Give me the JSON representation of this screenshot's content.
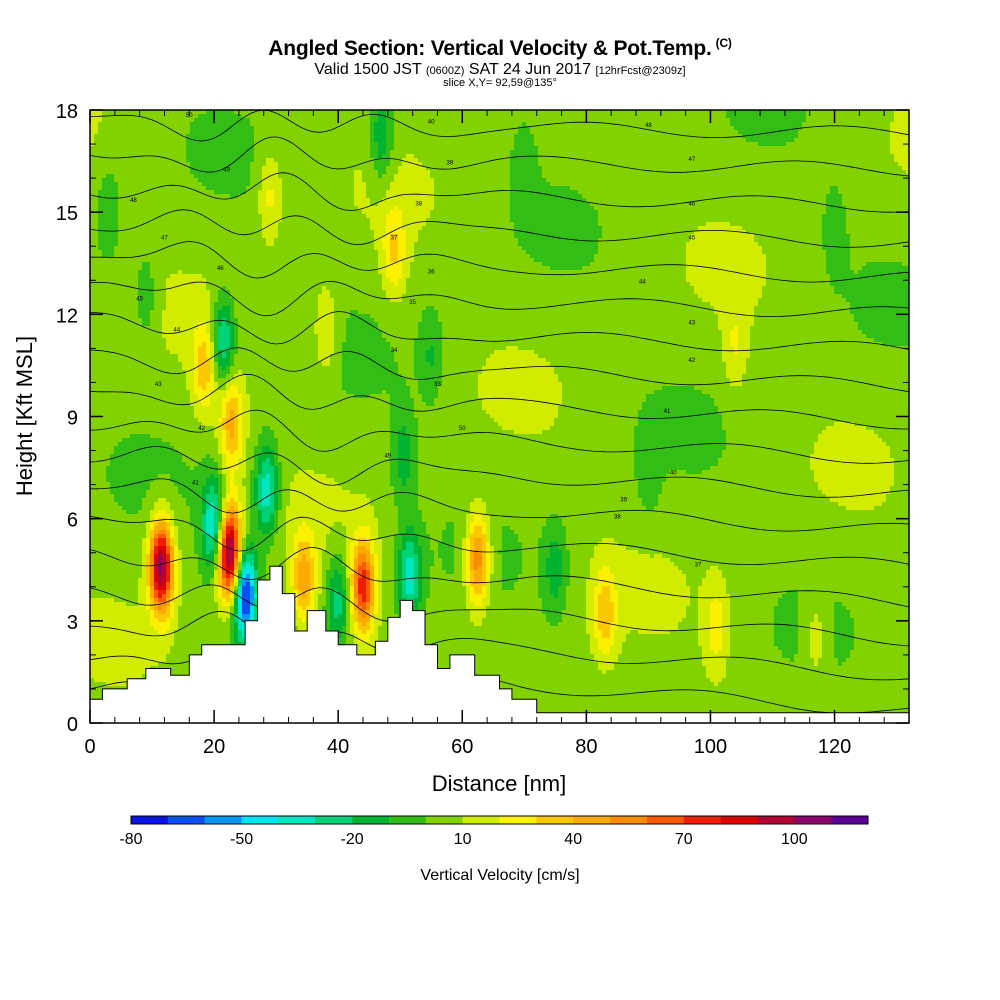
{
  "title": {
    "main": "Angled Section: Vertical Velocity & Pot.Temp.",
    "copyright": "(C)",
    "valid_prefix": "Valid 1500 JST",
    "zulu": "(0600Z)",
    "valid_date": "SAT 24 Jun 2017",
    "forecast": "[12hrFcst@2309z]",
    "slice": "slice X,Y= 92,59@135°"
  },
  "chart_data": {
    "type": "heatmap",
    "xlabel": "Distance [nm]",
    "ylabel": "Height [Kft MSL]",
    "xlim": [
      0,
      132
    ],
    "ylim": [
      0,
      18
    ],
    "x_ticks": [
      "0",
      "20",
      "40",
      "60",
      "80",
      "100",
      "120"
    ],
    "y_ticks": [
      "0",
      "3",
      "6",
      "9",
      "12",
      "15",
      "18"
    ],
    "colorbar": {
      "label": "Vertical Velocity [cm/s]",
      "tick_labels": [
        "-80",
        "-50",
        "-20",
        "10",
        "40",
        "70",
        "100"
      ],
      "levels": [
        -80,
        -70,
        -60,
        -50,
        -40,
        -30,
        -20,
        -10,
        0,
        10,
        20,
        30,
        40,
        50,
        60,
        70,
        80,
        90,
        100,
        110,
        120
      ],
      "colors": [
        "#0a14e6",
        "#0a50f0",
        "#0a96f5",
        "#00e6f0",
        "#00e6be",
        "#00d278",
        "#00b432",
        "#32be14",
        "#82d200",
        "#d2ec00",
        "#faf000",
        "#fac800",
        "#faaa00",
        "#fa8c00",
        "#fa5a00",
        "#f01e00",
        "#dc0000",
        "#b40032",
        "#8c006e",
        "#5a0096"
      ]
    },
    "background_value": 5,
    "updrafts": [
      {
        "x": 11.5,
        "z": 4.6,
        "w": 100
      },
      {
        "x": 22.5,
        "z": 5.0,
        "w": 110
      },
      {
        "x": 22.8,
        "z": 8.8,
        "w": 40
      },
      {
        "x": 18.5,
        "z": 10.4,
        "w": 30
      },
      {
        "x": 34.5,
        "z": 4.2,
        "w": 40
      },
      {
        "x": 44.0,
        "z": 4.0,
        "w": 70
      },
      {
        "x": 62.5,
        "z": 4.8,
        "w": 55
      },
      {
        "x": 49.0,
        "z": 13.8,
        "w": 25
      },
      {
        "x": 38.0,
        "z": 11.5,
        "w": 20
      },
      {
        "x": 29.0,
        "z": 15.5,
        "w": 20
      },
      {
        "x": 83.0,
        "z": 3.2,
        "w": 30
      },
      {
        "x": 101.0,
        "z": 2.8,
        "w": 20
      },
      {
        "x": 117.0,
        "z": 2.5,
        "w": 15
      },
      {
        "x": 104.0,
        "z": 11.0,
        "w": 15
      }
    ],
    "downdrafts": [
      {
        "x": 25.0,
        "z": 3.8,
        "w": -80
      },
      {
        "x": 20.0,
        "z": 5.8,
        "w": -50
      },
      {
        "x": 21.5,
        "z": 11.2,
        "w": -40
      },
      {
        "x": 28.5,
        "z": 6.8,
        "w": -45
      },
      {
        "x": 40.0,
        "z": 3.6,
        "w": -30
      },
      {
        "x": 51.5,
        "z": 4.3,
        "w": -40
      },
      {
        "x": 50.5,
        "z": 7.8,
        "w": -20
      },
      {
        "x": 47.0,
        "z": 17.2,
        "w": -25
      },
      {
        "x": 9.0,
        "z": 12.5,
        "w": -15
      },
      {
        "x": 3.0,
        "z": 15.0,
        "w": -15
      },
      {
        "x": 75.0,
        "z": 4.5,
        "w": -20
      },
      {
        "x": 55.0,
        "z": 10.8,
        "w": -15
      },
      {
        "x": 90.0,
        "z": 7.2,
        "w": -10
      },
      {
        "x": 120.0,
        "z": 14.5,
        "w": -10
      },
      {
        "x": 70.0,
        "z": 16.5,
        "w": -10
      }
    ],
    "isentrope_levels": [
      33,
      34,
      35,
      36,
      37,
      38,
      39,
      40,
      41,
      42,
      43,
      44,
      45,
      46,
      47,
      48,
      49,
      50
    ],
    "isentrope_labels": [
      "50",
      "49",
      "48",
      "47",
      "46",
      "45",
      "44",
      "43",
      "42",
      "41",
      "40",
      "39",
      "38",
      "37",
      "36",
      "35",
      "34",
      "33"
    ],
    "terrain": [
      {
        "x": 0,
        "z": 0.7
      },
      {
        "x": 2,
        "z": 1.0
      },
      {
        "x": 6,
        "z": 1.3
      },
      {
        "x": 9,
        "z": 1.6
      },
      {
        "x": 13,
        "z": 1.4
      },
      {
        "x": 16,
        "z": 2.0
      },
      {
        "x": 18,
        "z": 2.3
      },
      {
        "x": 22,
        "z": 2.3
      },
      {
        "x": 25,
        "z": 3.0
      },
      {
        "x": 27,
        "z": 4.2
      },
      {
        "x": 29,
        "z": 4.6
      },
      {
        "x": 31,
        "z": 3.8
      },
      {
        "x": 33,
        "z": 2.7
      },
      {
        "x": 35,
        "z": 3.3
      },
      {
        "x": 38,
        "z": 2.7
      },
      {
        "x": 40,
        "z": 2.3
      },
      {
        "x": 43,
        "z": 2.0
      },
      {
        "x": 46,
        "z": 2.4
      },
      {
        "x": 48,
        "z": 3.1
      },
      {
        "x": 50,
        "z": 3.6
      },
      {
        "x": 52,
        "z": 3.3
      },
      {
        "x": 54,
        "z": 2.3
      },
      {
        "x": 56,
        "z": 1.6
      },
      {
        "x": 58,
        "z": 2.0
      },
      {
        "x": 60,
        "z": 2.0
      },
      {
        "x": 62,
        "z": 1.4
      },
      {
        "x": 66,
        "z": 1.0
      },
      {
        "x": 68,
        "z": 0.7
      },
      {
        "x": 72,
        "z": 0.3
      },
      {
        "x": 132,
        "z": 0.3
      }
    ]
  }
}
